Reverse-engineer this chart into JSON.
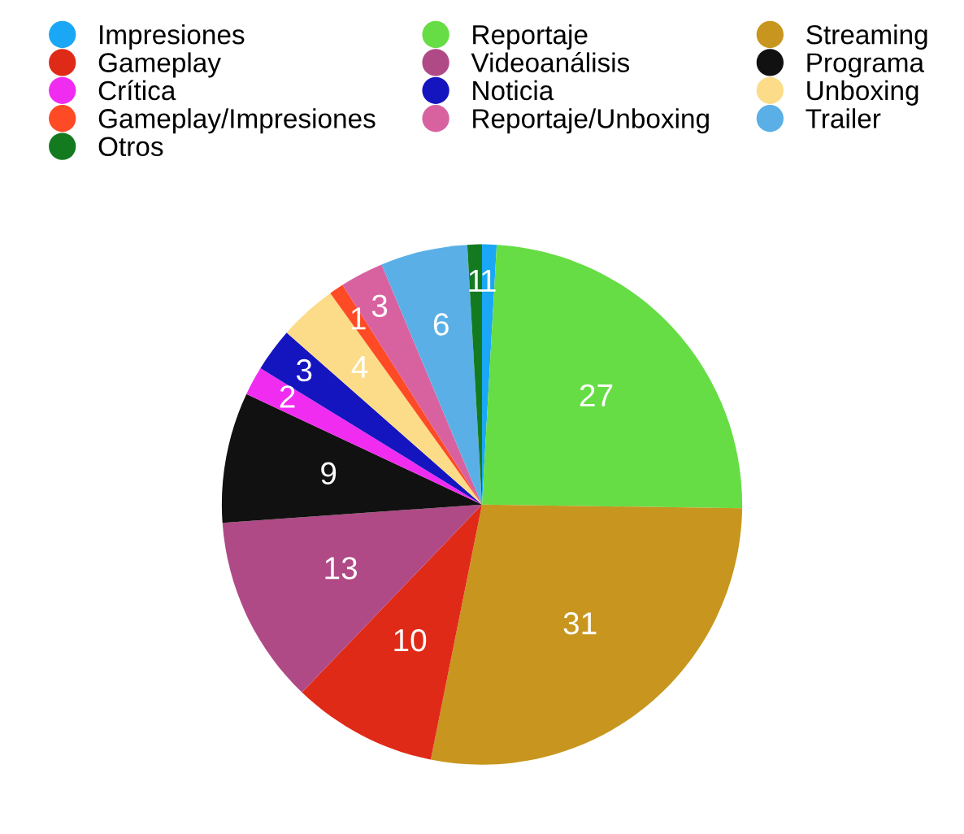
{
  "chart_data": {
    "type": "pie",
    "categories": [
      "Impresiones",
      "Reportaje",
      "Streaming",
      "Gameplay",
      "Videoanálisis",
      "Programa",
      "Crítica",
      "Noticia",
      "Unboxing",
      "Gameplay/Impresiones",
      "Reportaje/Unboxing",
      "Trailer",
      "Otros"
    ],
    "values": [
      1,
      27,
      31,
      10,
      13,
      9,
      2,
      3,
      4,
      1,
      3,
      6,
      1
    ],
    "colors": [
      "#1aa7f5",
      "#66dd44",
      "#c8961e",
      "#e02a18",
      "#b04a86",
      "#111111",
      "#f02cf0",
      "#1515c0",
      "#fcdc88",
      "#ff4a26",
      "#d862a0",
      "#5ab0e6",
      "#137a20"
    ],
    "data_labels": true,
    "legend": "top"
  }
}
